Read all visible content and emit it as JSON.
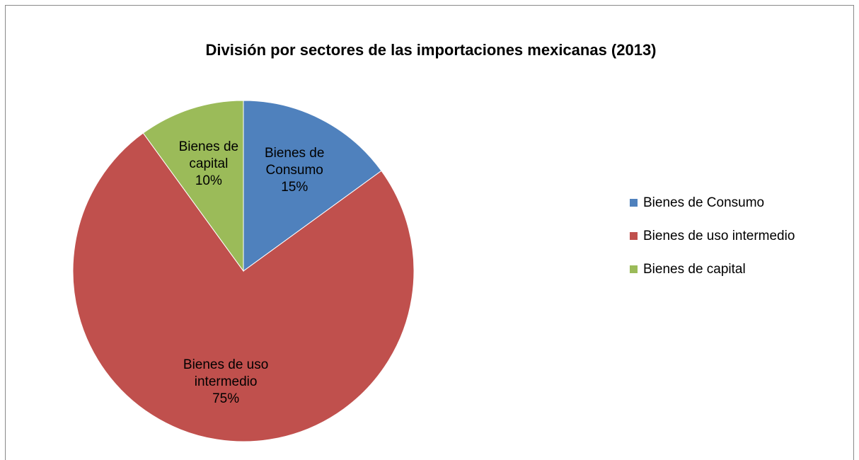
{
  "chart_data": {
    "type": "pie",
    "title": "División por sectores de las importaciones mexicanas (2013)",
    "categories": [
      "Bienes de Consumo",
      "Bienes de uso intermedio",
      "Bienes de capital"
    ],
    "values": [
      15,
      75,
      10
    ],
    "value_labels": [
      "15%",
      "75%",
      "10%"
    ],
    "colors": [
      "#4f81bd",
      "#c0504d",
      "#9bbb59"
    ],
    "legend": "right"
  }
}
